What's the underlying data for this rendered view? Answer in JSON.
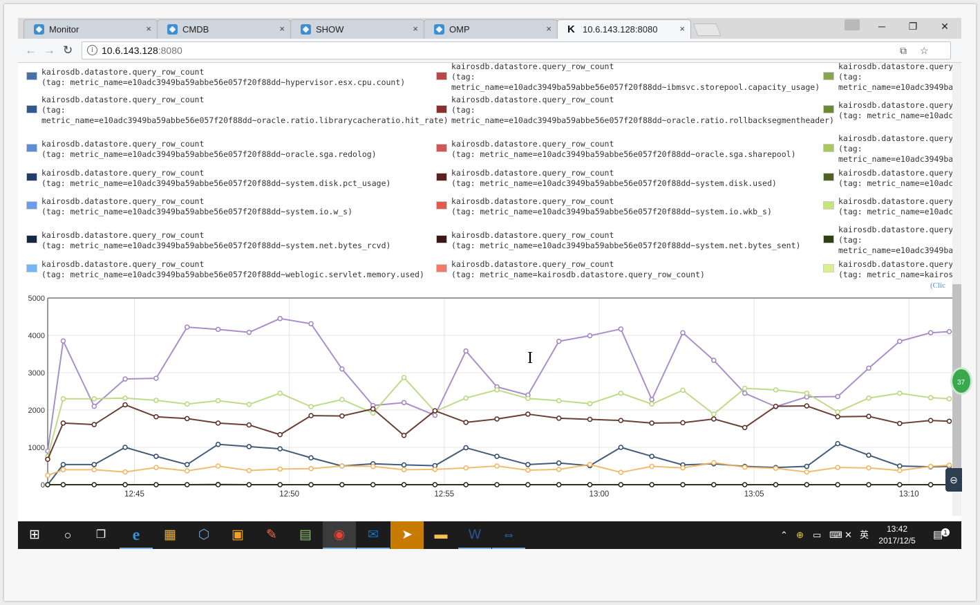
{
  "browser": {
    "tabs": [
      {
        "label": "Monitor",
        "icon": "cube-icon",
        "active": false
      },
      {
        "label": "CMDB",
        "icon": "cube-icon",
        "active": false
      },
      {
        "label": "SHOW",
        "icon": "cube-icon",
        "active": false
      },
      {
        "label": "OMP",
        "icon": "cube-icon",
        "active": false
      },
      {
        "label": "10.6.143.128:8080",
        "icon": "kairos-k-icon",
        "active": true
      }
    ],
    "close_glyph": "×",
    "address": {
      "host": "10.6.143.128",
      "port": ":8080"
    },
    "window_controls": {
      "minimize": "─",
      "restore": "❐",
      "close": "✕"
    }
  },
  "legend": {
    "metric_label": "kairosdb.datastore.query_row_count",
    "columns": [
      {
        "color_family": "blue",
        "items": [
          {
            "line2": "(tag: metric_name=e10adc3949ba59abbe56e057f20f88dd~hypervisor.esx.cpu.count)",
            "line3": "",
            "color": "#4572a7"
          },
          {
            "line2": "(tag:",
            "line3": "metric_name=e10adc3949ba59abbe56e057f20f88dd~oracle.ratio.librarycacheratio.hit_rate)",
            "color": "#2f5a8f"
          },
          {
            "line2": "(tag: metric_name=e10adc3949ba59abbe56e057f20f88dd~oracle.sga.redolog)",
            "line3": "",
            "color": "#5b8ed3"
          },
          {
            "line2": "(tag: metric_name=e10adc3949ba59abbe56e057f20f88dd~system.disk.pct_usage)",
            "line3": "",
            "color": "#233d66"
          },
          {
            "line2": "(tag: metric_name=e10adc3949ba59abbe56e057f20f88dd~system.io.w_s)",
            "line3": "",
            "color": "#6b9de8"
          },
          {
            "line2": "(tag: metric_name=e10adc3949ba59abbe56e057f20f88dd~system.net.bytes_rcvd)",
            "line3": "",
            "color": "#17273f"
          },
          {
            "line2": "(tag: metric_name=e10adc3949ba59abbe56e057f20f88dd~weblogic.servlet.memory.used)",
            "line3": "",
            "color": "#74b7f5"
          }
        ]
      },
      {
        "color_family": "red",
        "items": [
          {
            "line2": "(tag:",
            "line3": "metric_name=e10adc3949ba59abbe56e057f20f88dd~ibmsvc.storepool.capacity_usage)",
            "color": "#b94848"
          },
          {
            "line2": "(tag:",
            "line3": "metric_name=e10adc3949ba59abbe56e057f20f88dd~oracle.ratio.rollbacksegmentheader)",
            "color": "#8a2e2e"
          },
          {
            "line2": "(tag: metric_name=e10adc3949ba59abbe56e057f20f88dd~oracle.sga.sharepool)",
            "line3": "",
            "color": "#d35555"
          },
          {
            "line2": "(tag: metric_name=e10adc3949ba59abbe56e057f20f88dd~system.disk.used)",
            "line3": "",
            "color": "#5e1f1f"
          },
          {
            "line2": "(tag: metric_name=e10adc3949ba59abbe56e057f20f88dd~system.io.wkb_s)",
            "line3": "",
            "color": "#e05a4e"
          },
          {
            "line2": "(tag: metric_name=e10adc3949ba59abbe56e057f20f88dd~system.net.bytes_sent)",
            "line3": "",
            "color": "#3d1616"
          },
          {
            "line2": "(tag: metric_name=kairosdb.datastore.query_row_count)",
            "line3": "",
            "color": "#f07b6b"
          }
        ]
      },
      {
        "color_family": "green",
        "label_truncated": "kairosdb.datastore.query",
        "items": [
          {
            "line2": "(tag:",
            "line3": "metric_name=e10adc3949ba",
            "color": "#89a54e"
          },
          {
            "line2": "(tag: metric_name=e10adc",
            "line3": "",
            "color": "#6a8a35"
          },
          {
            "line2": "(tag:",
            "line3": "metric_name=e10adc3949ba",
            "color": "#a8c85a"
          },
          {
            "line2": "(tag: metric_name=e10adc",
            "line3": "",
            "color": "#4c6322"
          },
          {
            "line2": "(tag: metric_name=e10adc",
            "line3": "",
            "color": "#c3e57c"
          },
          {
            "line2": "(tag:",
            "line3": "metric_name=e10adc3949ba",
            "color": "#2f4014"
          },
          {
            "line2": "(tag: metric_name=kairos",
            "line3": "",
            "color": "#d9f28c"
          }
        ]
      }
    ],
    "click_hint": "(Clic"
  },
  "chart_data": {
    "type": "line",
    "title": "",
    "xlabel": "",
    "ylabel": "",
    "ylim": [
      0,
      5000
    ],
    "yticks": [
      0,
      1000,
      2000,
      3000,
      4000,
      5000
    ],
    "xticks": [
      {
        "label": "12:45",
        "minute": 4.7
      },
      {
        "label": "12:50",
        "minute": 9.7
      },
      {
        "label": "12:55",
        "minute": 14.7
      },
      {
        "label": "13:00",
        "minute": 19.7
      },
      {
        "label": "13:05",
        "minute": 24.7
      },
      {
        "label": "13:10",
        "minute": 29.7
      }
    ],
    "xlim": [
      1.9,
      31.1
    ],
    "x": [
      1.9,
      2.4,
      3.4,
      4.4,
      5.4,
      6.4,
      7.4,
      8.4,
      9.4,
      10.4,
      11.4,
      12.4,
      13.4,
      14.4,
      15.4,
      16.4,
      17.4,
      18.4,
      19.4,
      20.4,
      21.4,
      22.4,
      23.4,
      24.4,
      25.4,
      26.4,
      27.4,
      28.4,
      29.4,
      30.4,
      31.0
    ],
    "grid": true,
    "legend_position": "top",
    "series": [
      {
        "color": "#a083c2",
        "values": [
          900,
          3850,
          2100,
          2830,
          2850,
          4220,
          4160,
          4080,
          4450,
          4310,
          3100,
          2120,
          2200,
          1860,
          3580,
          2620,
          2400,
          3840,
          3990,
          4170,
          2280,
          4070,
          3330,
          2450,
          2090,
          2350,
          2360,
          3120,
          3840,
          4070,
          4100
        ]
      },
      {
        "color": "#b7d77b",
        "values": [
          750,
          2300,
          2300,
          2320,
          2260,
          2160,
          2250,
          2150,
          2450,
          2090,
          2280,
          1920,
          2870,
          1960,
          2320,
          2540,
          2310,
          2250,
          2170,
          2450,
          2160,
          2530,
          1890,
          2580,
          2540,
          2450,
          1950,
          2320,
          2450,
          2330,
          2300
        ]
      },
      {
        "color": "#5a2b20",
        "values": [
          680,
          1650,
          1610,
          2140,
          1820,
          1770,
          1650,
          1600,
          1340,
          1850,
          1840,
          2030,
          1320,
          1980,
          1670,
          1760,
          1890,
          1780,
          1750,
          1720,
          1650,
          1660,
          1760,
          1530,
          2100,
          2110,
          1820,
          1830,
          1640,
          1720,
          1700
        ]
      },
      {
        "color": "#2d4a6b",
        "values": [
          0,
          540,
          540,
          1000,
          760,
          540,
          1080,
          1020,
          960,
          720,
          500,
          560,
          530,
          510,
          990,
          760,
          540,
          580,
          510,
          1000,
          760,
          530,
          560,
          490,
          460,
          490,
          1100,
          790,
          500,
          480,
          490
        ]
      },
      {
        "color": "#f0b55f",
        "values": [
          250,
          400,
          400,
          340,
          460,
          370,
          500,
          380,
          420,
          430,
          500,
          490,
          400,
          410,
          450,
          500,
          390,
          410,
          540,
          330,
          490,
          450,
          590,
          470,
          440,
          340,
          460,
          450,
          380,
          490,
          520
        ]
      },
      {
        "color": "#b45a2e",
        "values": [
          0,
          0,
          0,
          0,
          0,
          0,
          10,
          0,
          0,
          0,
          0,
          0,
          0,
          0,
          0,
          0,
          0,
          0,
          0,
          0,
          0,
          0,
          0,
          0,
          0,
          0,
          0,
          0,
          0,
          0,
          0
        ]
      },
      {
        "color": "#1e2e18",
        "values": [
          0,
          0,
          0,
          0,
          0,
          0,
          0,
          0,
          0,
          0,
          0,
          0,
          0,
          0,
          0,
          0,
          0,
          0,
          0,
          0,
          0,
          0,
          0,
          0,
          0,
          0,
          0,
          0,
          0,
          0,
          0
        ]
      }
    ]
  },
  "overlay": {
    "badge": "37"
  },
  "taskbar": {
    "clock_time": "13:42",
    "clock_date": "2017/12/5",
    "ime": "英",
    "notification_count": "1",
    "apps": [
      {
        "name": "edge-icon",
        "glyph": "e"
      },
      {
        "name": "photos-icon",
        "glyph": "▦"
      },
      {
        "name": "virtualbox-icon",
        "glyph": "⬡"
      },
      {
        "name": "app-orange-icon",
        "glyph": "▣"
      },
      {
        "name": "pen-icon",
        "glyph": "✎"
      },
      {
        "name": "screenshot-icon",
        "glyph": "▤"
      },
      {
        "name": "chrome-icon",
        "glyph": "◉"
      },
      {
        "name": "outlook-icon",
        "glyph": "✉"
      },
      {
        "name": "feishu-icon",
        "glyph": "➤"
      },
      {
        "name": "explorer-icon",
        "glyph": "▬"
      },
      {
        "name": "word-icon",
        "glyph": "W"
      },
      {
        "name": "teamviewer-icon",
        "glyph": "⇔"
      }
    ]
  }
}
